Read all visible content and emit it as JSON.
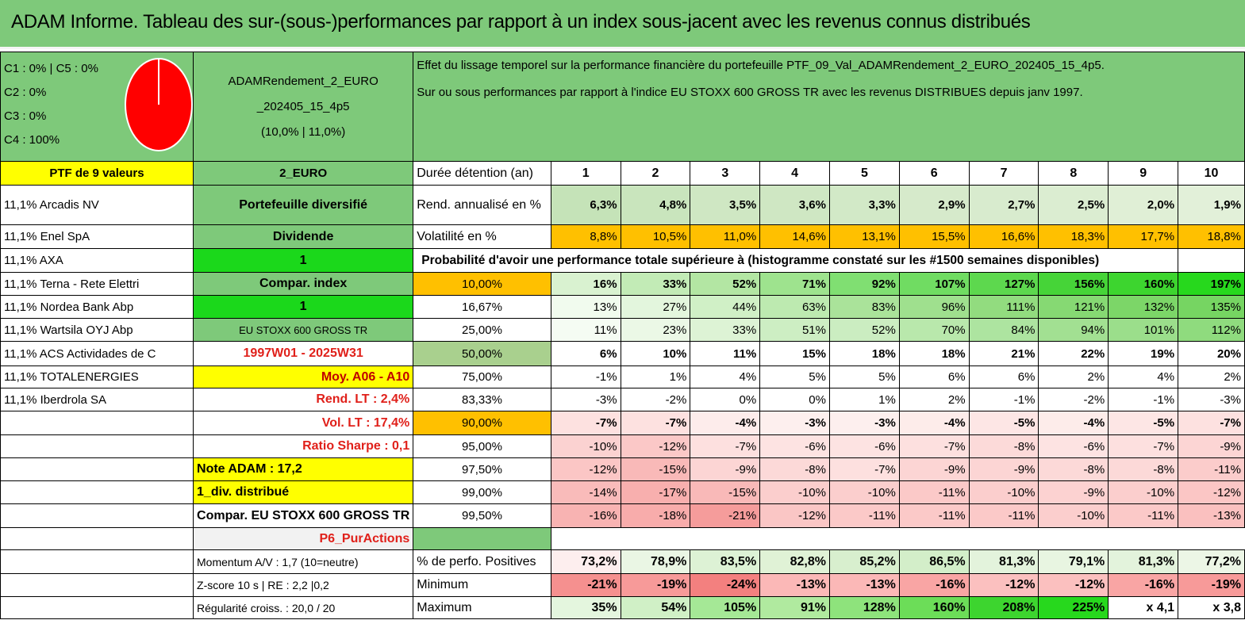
{
  "title": "ADAM Informe. Tableau des sur-(sous-)performances par rapport à un index sous-jacent avec les revenus connus distribués",
  "pie": {
    "lines": [
      "C1 : 0% | C5 : 0%",
      "C2 : 0%",
      "C3 : 0%",
      "C4 : 100%"
    ],
    "fill_color": "#ff0000"
  },
  "fund": {
    "name_line1": "ADAMRendement_2_EURO",
    "name_line2": "_202405_15_4p5",
    "name_line3": "(10,0% | 11,0%)"
  },
  "description": {
    "line1": "Effet du lissage temporel sur la performance financière du portefeuille PTF_09_Val_ADAMRendement_2_EURO_202405_15_4p5.",
    "line2": "Sur ou sous performances par rapport à l'indice EU STOXX 600 GROSS TR avec les revenus DISTRIBUES depuis janv 1997."
  },
  "col1": {
    "header": "PTF de 9 valeurs",
    "rows": [
      "11,1% Arcadis NV",
      "11,1% Enel SpA",
      "11,1% AXA",
      "11,1% Terna - Rete Elettri",
      "11,1% Nordea Bank Abp",
      "11,1% Wartsila OYJ Abp",
      "11,1% ACS Actividades de C",
      "11,1% TOTALENERGIES",
      "11,1% Iberdrola SA",
      "",
      "",
      "",
      "",
      "",
      "",
      "",
      "",
      ""
    ]
  },
  "col2": {
    "header": "2_EURO",
    "rows": [
      "Portefeuille diversifié",
      "Dividende",
      "1",
      "Compar. index",
      "1",
      "EU STOXX 600 GROSS TR",
      "1997W01 - 2025W31",
      "Moy. A06 - A10",
      "Rend. LT : 2,4%",
      "Vol. LT : 17,4%",
      "Ratio Sharpe : 0,1",
      "Note ADAM : 17,2",
      "1_div. distribué",
      "Compar. EU STOXX 600 GROSS TR",
      "P6_PurActions",
      "Momentum A/V : 1,7 (10=neutre)",
      "Z-score 10 s | RE : 2,2 |0,2",
      "Régularité croiss. : 20,0 / 20"
    ]
  },
  "stats": {
    "header_label": "Durée détention (an)",
    "years": [
      "1",
      "2",
      "3",
      "4",
      "5",
      "6",
      "7",
      "8",
      "9",
      "10"
    ],
    "rend_label": "Rend. annualisé en %",
    "rend": [
      "6,3%",
      "4,8%",
      "3,5%",
      "3,6%",
      "3,3%",
      "2,9%",
      "2,7%",
      "2,5%",
      "2,0%",
      "1,9%"
    ],
    "vol_label": "Volatilité en %",
    "vol": [
      "8,8%",
      "10,5%",
      "11,0%",
      "14,6%",
      "13,1%",
      "15,5%",
      "16,6%",
      "18,3%",
      "17,7%",
      "18,8%"
    ],
    "prob_label": "Probabilité d'avoir une performance totale supérieure à (histogramme constaté sur les #1500 semaines disponibles)"
  },
  "quantiles": [
    {
      "q": "10,00%",
      "v": [
        "16%",
        "33%",
        "52%",
        "71%",
        "92%",
        "107%",
        "127%",
        "156%",
        "160%",
        "197%"
      ]
    },
    {
      "q": "16,67%",
      "v": [
        "13%",
        "27%",
        "44%",
        "63%",
        "83%",
        "96%",
        "111%",
        "121%",
        "132%",
        "135%"
      ]
    },
    {
      "q": "25,00%",
      "v": [
        "11%",
        "23%",
        "33%",
        "51%",
        "52%",
        "70%",
        "84%",
        "94%",
        "101%",
        "112%"
      ]
    },
    {
      "q": "50,00%",
      "v": [
        "6%",
        "10%",
        "11%",
        "15%",
        "18%",
        "18%",
        "21%",
        "22%",
        "19%",
        "20%"
      ]
    },
    {
      "q": "75,00%",
      "v": [
        "-1%",
        "1%",
        "4%",
        "5%",
        "5%",
        "6%",
        "6%",
        "2%",
        "4%",
        "2%"
      ]
    },
    {
      "q": "83,33%",
      "v": [
        "-3%",
        "-2%",
        "0%",
        "0%",
        "1%",
        "2%",
        "-1%",
        "-2%",
        "-1%",
        "-3%"
      ]
    },
    {
      "q": "90,00%",
      "v": [
        "-7%",
        "-7%",
        "-4%",
        "-3%",
        "-3%",
        "-4%",
        "-5%",
        "-4%",
        "-5%",
        "-7%"
      ]
    },
    {
      "q": "95,00%",
      "v": [
        "-10%",
        "-12%",
        "-7%",
        "-6%",
        "-6%",
        "-7%",
        "-8%",
        "-6%",
        "-7%",
        "-9%"
      ]
    },
    {
      "q": "97,50%",
      "v": [
        "-12%",
        "-15%",
        "-9%",
        "-8%",
        "-7%",
        "-9%",
        "-9%",
        "-8%",
        "-8%",
        "-11%"
      ]
    },
    {
      "q": "99,00%",
      "v": [
        "-14%",
        "-17%",
        "-15%",
        "-10%",
        "-10%",
        "-11%",
        "-10%",
        "-9%",
        "-10%",
        "-12%"
      ]
    },
    {
      "q": "99,50%",
      "v": [
        "-16%",
        "-18%",
        "-21%",
        "-12%",
        "-11%",
        "-11%",
        "-11%",
        "-10%",
        "-11%",
        "-13%"
      ]
    }
  ],
  "summary": [
    {
      "label": "% de perfo. Positives",
      "v": [
        "73,2%",
        "78,9%",
        "83,5%",
        "82,8%",
        "85,2%",
        "86,5%",
        "81,3%",
        "79,1%",
        "81,3%",
        "77,2%"
      ]
    },
    {
      "label": "Minimum",
      "v": [
        "-21%",
        "-19%",
        "-24%",
        "-13%",
        "-13%",
        "-16%",
        "-12%",
        "-12%",
        "-16%",
        "-19%"
      ]
    },
    {
      "label": "Maximum",
      "v": [
        "35%",
        "54%",
        "105%",
        "91%",
        "128%",
        "160%",
        "208%",
        "225%",
        "x 4,1",
        "x 3,8"
      ]
    }
  ],
  "colors": {
    "header_green": "#7ec97a",
    "bright_green": "#1bd81b",
    "yellow": "#ffff00",
    "orange": "#ffc000",
    "red_text": "#e0201a"
  }
}
